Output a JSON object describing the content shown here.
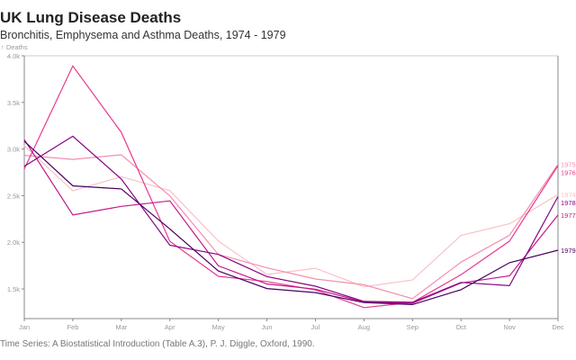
{
  "title": "UK Lung Disease Deaths",
  "subtitle": "Bronchitis, Emphysema and Asthma Deaths, 1974 - 1979",
  "source": "Time Series: A Biostatistical Introduction (Table A.3), P. J. Diggle, Oxford, 1990.",
  "chart_data": {
    "type": "line",
    "title": "UK Lung Disease Deaths",
    "subtitle": "Bronchitis, Emphysema and Asthma Deaths, 1974 - 1979",
    "xlabel": "",
    "ylabel": "↑ Deaths",
    "categories": [
      "Jan",
      "Feb",
      "Mar",
      "Apr",
      "May",
      "Jun",
      "Jul",
      "Aug",
      "Sep",
      "Oct",
      "Nov",
      "Dec"
    ],
    "ylim": [
      1182,
      4000
    ],
    "yticks": [
      1500,
      2000,
      2500,
      3000,
      3500,
      4000
    ],
    "ytick_labels": [
      "1.5k",
      "2.0k",
      "2.5k",
      "3.0k",
      "3.5k",
      "4.0k"
    ],
    "legend": "end-of-line labels right",
    "series": [
      {
        "name": "1974",
        "color": "#f9c3c6",
        "values": [
          3035,
          2552,
          2704,
          2554,
          2014,
          1655,
          1721,
          1524,
          1596,
          2074,
          2199,
          2512
        ]
      },
      {
        "name": "1975",
        "color": "#f38fb0",
        "values": [
          2933,
          2889,
          2938,
          2497,
          1870,
          1726,
          1607,
          1545,
          1396,
          1787,
          2076,
          2837
        ]
      },
      {
        "name": "1976",
        "color": "#e8398f",
        "values": [
          2787,
          3891,
          3179,
          2011,
          1636,
          1580,
          1489,
          1300,
          1356,
          1653,
          2013,
          2823
        ]
      },
      {
        "name": "1977",
        "color": "#c3178a",
        "values": [
          3102,
          2294,
          2385,
          2444,
          1748,
          1554,
          1498,
          1361,
          1346,
          1564,
          1640,
          2293
        ]
      },
      {
        "name": "1978",
        "color": "#860583",
        "values": [
          2815,
          3137,
          2679,
          1969,
          1870,
          1633,
          1529,
          1366,
          1357,
          1570,
          1535,
          2491
        ]
      },
      {
        "name": "1979",
        "color": "#4a0062",
        "values": [
          3084,
          2605,
          2573,
          2143,
          1693,
          1504,
          1461,
          1354,
          1333,
          1492,
          1781,
          1915
        ]
      }
    ]
  }
}
